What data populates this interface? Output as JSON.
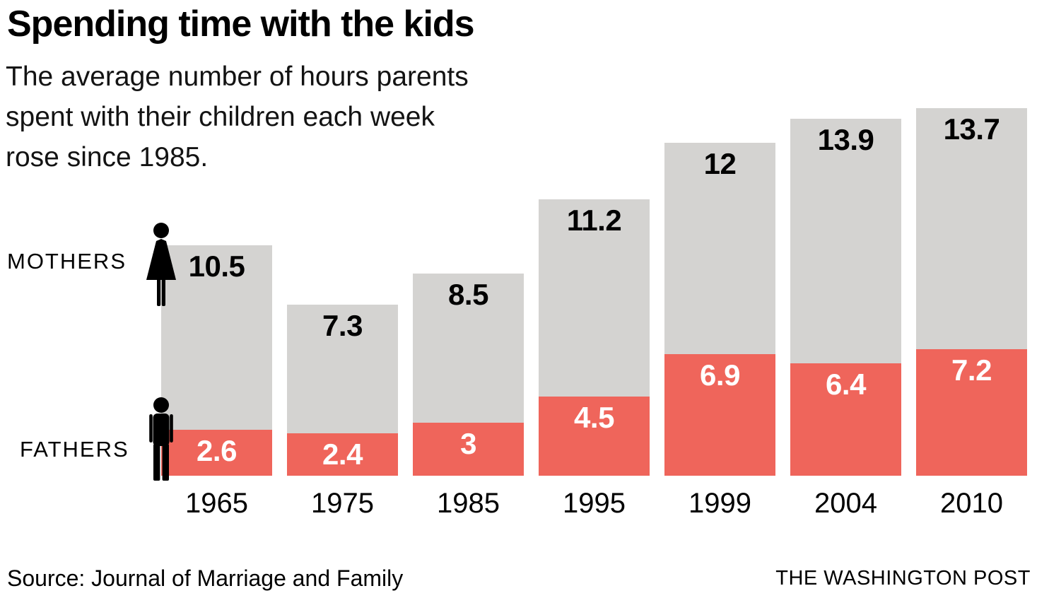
{
  "header": {
    "title": "Spending time with the kids",
    "subtitle": "The average number of hours parents spent with their children each week rose since 1985.",
    "subtitle_lines": {
      "l1": "The average number of hours parents",
      "l2": "spent with their children each week",
      "l3": "rose since 1985."
    }
  },
  "legend": {
    "mothers_label": "MOTHERS",
    "fathers_label": "FATHERS",
    "mothers_icon": "woman-icon",
    "fathers_icon": "man-icon"
  },
  "chart_data": {
    "type": "bar",
    "subtype": "stacked",
    "title": "Spending time with the kids",
    "unit": "hours per week",
    "categories": [
      "1965",
      "1975",
      "1985",
      "1995",
      "1999",
      "2004",
      "2010"
    ],
    "series": [
      {
        "name": "FATHERS",
        "color": "#ef655b",
        "label_color": "#ffffff",
        "values": [
          2.6,
          2.4,
          3,
          4.5,
          6.9,
          6.4,
          7.2
        ]
      },
      {
        "name": "MOTHERS",
        "color": "#d4d3d1",
        "label_color": "#000000",
        "values": [
          10.5,
          7.3,
          8.5,
          11.2,
          12,
          13.9,
          13.7
        ]
      }
    ],
    "value_labels_shown": true,
    "axes_shown": false,
    "gridlines": false,
    "legend_position": "left-of-first-bar",
    "xlabel": "",
    "ylabel": ""
  },
  "footer": {
    "source": "Source: Journal of Marriage and Family",
    "credit": "THE WASHINGTON POST"
  },
  "colors": {
    "background": "#ffffff",
    "mothers_bar": "#d4d3d1",
    "fathers_bar": "#ef655b",
    "text": "#000000",
    "icon": "#000000"
  }
}
